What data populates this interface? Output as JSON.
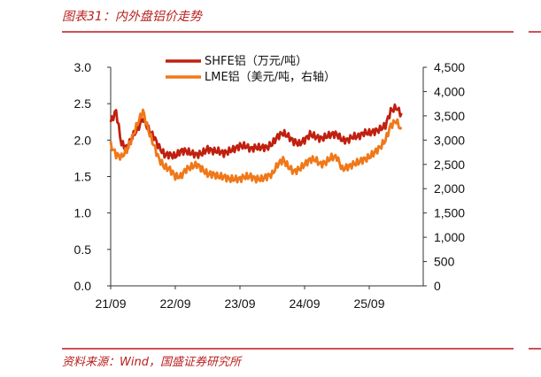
{
  "figure": {
    "title": "图表31：内外盘铝价走势",
    "source": "资料来源：Wind，国盛证券研究所"
  },
  "colors": {
    "accent_rule": "#c0161b",
    "shfe": "#c0200f",
    "lme": "#f07818",
    "axis": "#333333"
  },
  "chart_data": {
    "type": "line",
    "x_ticks": [
      "21/09",
      "22/09",
      "23/09",
      "24/09",
      "25/09"
    ],
    "x": [
      "2021-09",
      "2021-10",
      "2021-11",
      "2021-12",
      "2022-01",
      "2022-02",
      "2022-03",
      "2022-04",
      "2022-05",
      "2022-06",
      "2022-07",
      "2022-08",
      "2022-09",
      "2022-10",
      "2022-11",
      "2022-12",
      "2023-01",
      "2023-02",
      "2023-03",
      "2023-04",
      "2023-05",
      "2023-06",
      "2023-07",
      "2023-08",
      "2023-09",
      "2023-10",
      "2023-11",
      "2023-12",
      "2024-01",
      "2024-02",
      "2024-03",
      "2024-04",
      "2024-05",
      "2024-06",
      "2024-07",
      "2024-08",
      "2024-09",
      "2024-10",
      "2024-11",
      "2024-12",
      "2025-01",
      "2025-02",
      "2025-03",
      "2025-04",
      "2025-05",
      "2025-06",
      "2025-07",
      "2025-08",
      "2025-09",
      "2025-10",
      "2025-11",
      "2025-12",
      "2026-01",
      "2026-02",
      "2026-03"
    ],
    "series": [
      {
        "name": "SHFE铝（万元/吨）",
        "axis": "left",
        "values": [
          2.25,
          2.4,
          1.95,
          1.9,
          2.05,
          2.15,
          2.3,
          2.15,
          2.05,
          1.9,
          1.8,
          1.8,
          1.78,
          1.85,
          1.85,
          1.82,
          1.8,
          1.82,
          1.88,
          1.85,
          1.85,
          1.82,
          1.85,
          1.88,
          1.92,
          1.92,
          1.88,
          1.9,
          1.9,
          1.9,
          1.95,
          2.05,
          2.1,
          2.05,
          1.98,
          1.95,
          2.0,
          2.08,
          2.05,
          2.02,
          2.05,
          2.08,
          2.08,
          2.0,
          2.0,
          2.05,
          2.05,
          2.1,
          2.1,
          2.12,
          2.15,
          2.2,
          2.4,
          2.45,
          2.35
        ]
      },
      {
        "name": "LME铝（美元/吨，右轴）",
        "axis": "right",
        "values": [
          2900,
          2700,
          2650,
          2800,
          3050,
          3350,
          3600,
          3200,
          2900,
          2600,
          2450,
          2400,
          2250,
          2250,
          2400,
          2450,
          2500,
          2400,
          2300,
          2300,
          2250,
          2250,
          2200,
          2200,
          2200,
          2250,
          2250,
          2200,
          2200,
          2250,
          2300,
          2500,
          2600,
          2450,
          2350,
          2400,
          2500,
          2600,
          2600,
          2500,
          2550,
          2650,
          2650,
          2400,
          2450,
          2500,
          2550,
          2600,
          2650,
          2750,
          2850,
          3000,
          3300,
          3400,
          3200
        ]
      }
    ],
    "y_left": {
      "ticks": [
        "0.0",
        "0.5",
        "1.0",
        "1.5",
        "2.0",
        "2.5",
        "3.0"
      ],
      "lim": [
        0,
        3
      ]
    },
    "y_right": {
      "ticks": [
        "0",
        "500",
        "1,000",
        "1,500",
        "2,000",
        "2,500",
        "3,000",
        "3,500",
        "4,000",
        "4,500"
      ],
      "lim": [
        0,
        4500
      ]
    },
    "legend_position": "top-center",
    "grid": false
  }
}
